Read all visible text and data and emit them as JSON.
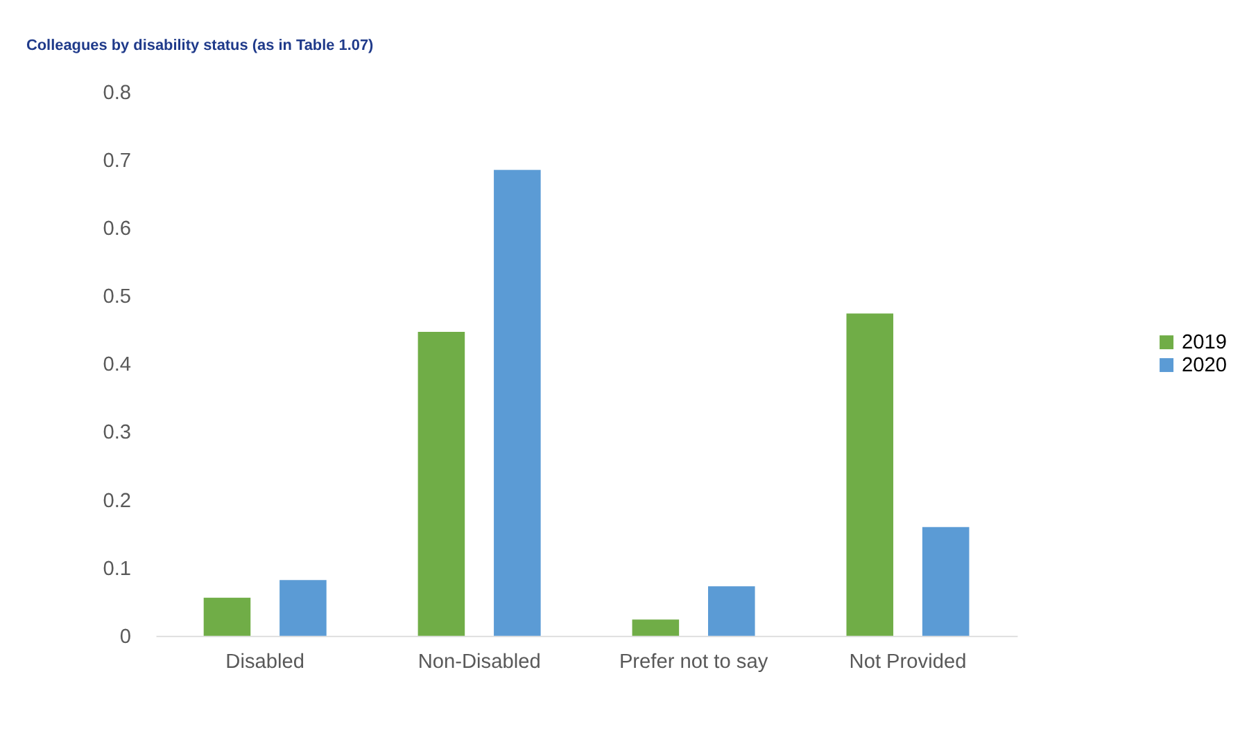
{
  "chart_data": {
    "type": "bar",
    "title": "Colleagues by disability status (as in Table 1.07)",
    "categories": [
      "Disabled",
      "Non-Disabled",
      "Prefer not to say",
      "Not Provided"
    ],
    "series": [
      {
        "name": "2019",
        "color": "#70ad47",
        "values": [
          0.056,
          0.447,
          0.024,
          0.474
        ]
      },
      {
        "name": "2020",
        "color": "#5b9bd5",
        "values": [
          0.082,
          0.685,
          0.073,
          0.16
        ]
      }
    ],
    "ylim": [
      0,
      0.8
    ],
    "yticks": [
      0,
      0.1,
      0.2,
      0.3,
      0.4,
      0.5,
      0.6,
      0.7,
      0.8
    ],
    "grid": false,
    "legend": "right"
  }
}
